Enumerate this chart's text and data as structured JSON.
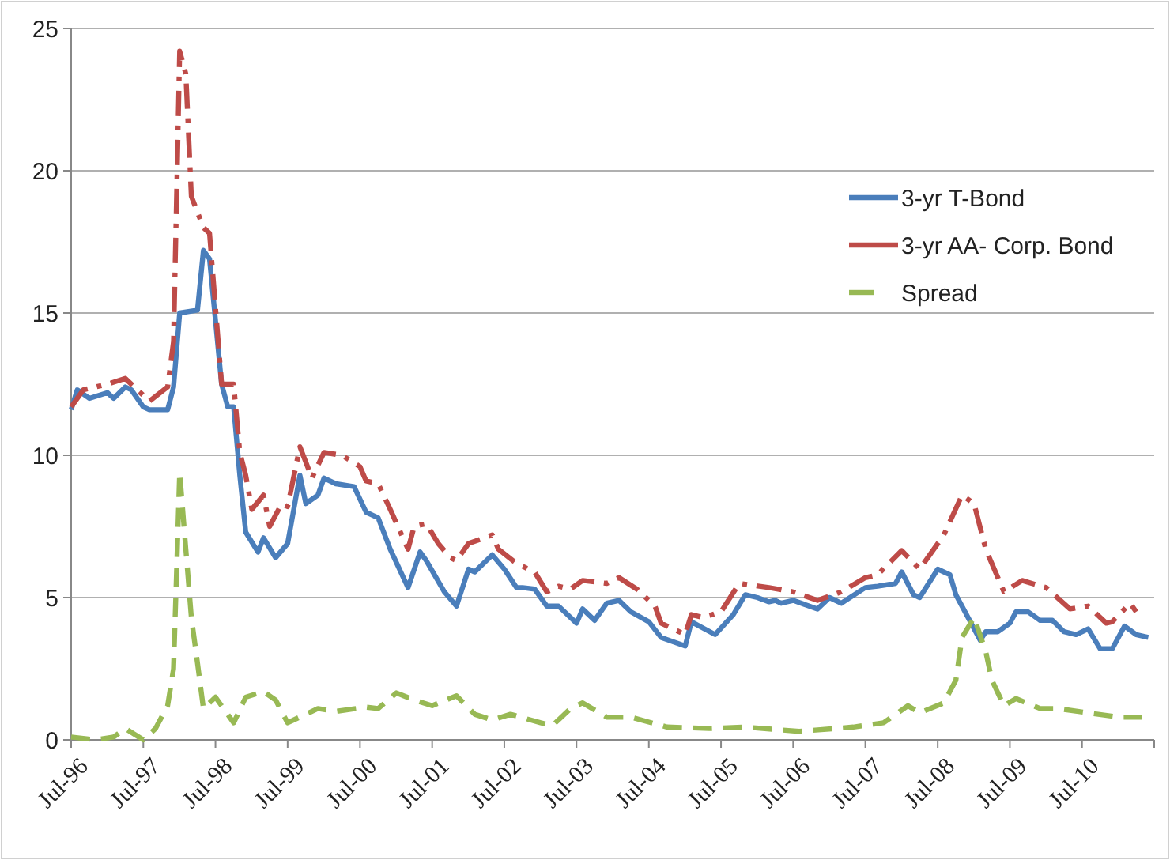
{
  "chart_data": {
    "type": "line",
    "xlim": [
      "1996-07",
      "2011-07"
    ],
    "ylim": [
      0,
      25
    ],
    "yticks": [
      0,
      5,
      10,
      15,
      20,
      25
    ],
    "xticks": [
      {
        "value": "1996-07",
        "label": "Jul-96"
      },
      {
        "value": "1997-07",
        "label": "Jul-97"
      },
      {
        "value": "1998-07",
        "label": "Jul-98"
      },
      {
        "value": "1999-07",
        "label": "Jul-99"
      },
      {
        "value": "2000-07",
        "label": "Jul-00"
      },
      {
        "value": "2001-07",
        "label": "Jul-01"
      },
      {
        "value": "2002-07",
        "label": "Jul-02"
      },
      {
        "value": "2003-07",
        "label": "Jul-03"
      },
      {
        "value": "2004-07",
        "label": "Jul-04"
      },
      {
        "value": "2005-07",
        "label": "Jul-05"
      },
      {
        "value": "2006-07",
        "label": "Jul-06"
      },
      {
        "value": "2007-07",
        "label": "Jul-07"
      },
      {
        "value": "2008-07",
        "label": "Jul-08"
      },
      {
        "value": "2009-07",
        "label": "Jul-09"
      },
      {
        "value": "2010-07",
        "label": "Jul-10"
      },
      {
        "value": "2011-07",
        "label": null
      }
    ],
    "grid": "y",
    "legend": "right",
    "marker": "none",
    "series": [
      {
        "name": "3-yr T-Bond",
        "color": "#4a7ebb",
        "line_style": "solid",
        "x": [
          "1996-07",
          "1996-08",
          "1996-10",
          "1997-01",
          "1997-02",
          "1997-04",
          "1997-05",
          "1997-07",
          "1997-08",
          "1997-11",
          "1997-12",
          "1998-01",
          "1998-04",
          "1998-05",
          "1998-06",
          "1998-08",
          "1998-09",
          "1998-10",
          "1998-11",
          "1998-12",
          "1999-02",
          "1999-03",
          "1999-05",
          "1999-07",
          "1999-09",
          "1999-10",
          "1999-12",
          "2000-01",
          "2000-03",
          "2000-06",
          "2000-08",
          "2000-09",
          "2000-10",
          "2000-12",
          "2001-03",
          "2001-05",
          "2001-06",
          "2001-09",
          "2001-11",
          "2002-01",
          "2002-02",
          "2002-05",
          "2002-07",
          "2002-09",
          "2002-10",
          "2002-12",
          "2003-02",
          "2003-04",
          "2003-07",
          "2003-08",
          "2003-10",
          "2003-12",
          "2004-02",
          "2004-04",
          "2004-07",
          "2004-09",
          "2005-01",
          "2005-02",
          "2005-06",
          "2005-09",
          "2005-11",
          "2006-01",
          "2006-03",
          "2006-04",
          "2006-05",
          "2006-07",
          "2006-11",
          "2007-01",
          "2007-03",
          "2007-07",
          "2007-09",
          "2007-12",
          "2008-01",
          "2008-03",
          "2008-04",
          "2008-07",
          "2008-09",
          "2008-10",
          "2009-02",
          "2009-03",
          "2009-05",
          "2009-07",
          "2009-08",
          "2009-10",
          "2009-12",
          "2010-02",
          "2010-04",
          "2010-06",
          "2010-08",
          "2010-10",
          "2010-12",
          "2011-02",
          "2011-04",
          "2011-06"
        ],
        "values": [
          11.6,
          12.3,
          12.0,
          12.2,
          12.0,
          12.4,
          12.3,
          11.7,
          11.6,
          11.6,
          12.4,
          15.0,
          15.1,
          17.2,
          16.9,
          12.5,
          11.7,
          11.7,
          9.3,
          7.3,
          6.6,
          7.1,
          6.4,
          6.9,
          9.3,
          8.3,
          8.6,
          9.2,
          9.0,
          8.9,
          8.0,
          7.9,
          7.8,
          6.7,
          5.35,
          6.6,
          6.3,
          5.2,
          4.7,
          6.0,
          5.9,
          6.5,
          6.0,
          5.35,
          5.35,
          5.3,
          4.7,
          4.7,
          4.1,
          4.6,
          4.2,
          4.8,
          4.9,
          4.5,
          4.15,
          3.6,
          3.3,
          4.15,
          3.7,
          4.4,
          5.1,
          5.0,
          4.85,
          4.9,
          4.8,
          4.9,
          4.6,
          5.0,
          4.8,
          5.35,
          5.4,
          5.5,
          5.9,
          5.1,
          5.0,
          6.0,
          5.8,
          5.1,
          3.5,
          3.8,
          3.8,
          4.1,
          4.5,
          4.5,
          4.2,
          4.2,
          3.8,
          3.7,
          3.9,
          3.2,
          3.2,
          4.0,
          3.7,
          3.6
        ]
      },
      {
        "name": "3-yr AA- Corp. Bond",
        "color": "#be4b48",
        "line_style": "dashdot",
        "x": [
          "1996-07",
          "1996-09",
          "1997-01",
          "1997-04",
          "1997-06",
          "1997-08",
          "1997-11",
          "1997-12",
          "1998-01",
          "1998-02",
          "1998-03",
          "1998-05",
          "1998-06",
          "1998-08",
          "1998-10",
          "1998-11",
          "1998-12",
          "1999-01",
          "1999-03",
          "1999-04",
          "1999-06",
          "1999-07",
          "1999-09",
          "1999-11",
          "2000-01",
          "2000-04",
          "2000-07",
          "2000-08",
          "2000-10",
          "2000-12",
          "2001-03",
          "2001-04",
          "2001-06",
          "2001-08",
          "2001-10",
          "2001-11",
          "2002-01",
          "2002-05",
          "2002-06",
          "2002-09",
          "2002-12",
          "2003-02",
          "2003-04",
          "2003-06",
          "2003-08",
          "2003-12",
          "2004-02",
          "2004-05",
          "2004-08",
          "2004-09",
          "2005-01",
          "2005-02",
          "2005-04",
          "2005-07",
          "2005-10",
          "2006-03",
          "2006-07",
          "2006-11",
          "2007-03",
          "2007-07",
          "2007-09",
          "2008-01",
          "2008-04",
          "2008-08",
          "2008-11",
          "2009-01",
          "2009-03",
          "2009-06",
          "2009-09",
          "2010-01",
          "2010-05",
          "2010-08",
          "2010-11",
          "2010-12",
          "2011-03",
          "2011-04"
        ],
        "values": [
          11.7,
          12.3,
          12.5,
          12.7,
          12.3,
          11.9,
          12.4,
          14.0,
          24.2,
          23.4,
          19.1,
          18.0,
          17.8,
          12.5,
          12.5,
          10.1,
          9.3,
          8.1,
          8.6,
          7.5,
          8.3,
          8.2,
          10.3,
          9.2,
          10.1,
          10.0,
          9.6,
          9.1,
          9.0,
          8.1,
          6.7,
          7.5,
          7.6,
          6.9,
          6.4,
          6.3,
          6.9,
          7.2,
          6.7,
          6.2,
          5.9,
          5.2,
          5.4,
          5.3,
          5.6,
          5.5,
          5.7,
          5.3,
          4.7,
          4.1,
          3.7,
          4.4,
          4.3,
          4.5,
          5.5,
          5.35,
          5.2,
          4.9,
          5.2,
          5.7,
          5.8,
          6.65,
          6.0,
          7.2,
          8.6,
          8.3,
          6.7,
          5.2,
          5.6,
          5.35,
          4.6,
          4.7,
          4.1,
          4.15,
          4.8,
          4.5
        ]
      },
      {
        "name": "Spread",
        "color": "#98b954",
        "line_style": "dashed",
        "x": [
          "1996-07",
          "1996-11",
          "1997-02",
          "1997-04",
          "1997-07",
          "1997-09",
          "1997-11",
          "1997-12",
          "1998-01",
          "1998-02",
          "1998-03",
          "1998-04",
          "1998-05",
          "1998-07",
          "1998-10",
          "1998-12",
          "1999-03",
          "1999-05",
          "1999-07",
          "1999-12",
          "2000-03",
          "2000-08",
          "2000-10",
          "2001-01",
          "2001-04",
          "2001-07",
          "2001-11",
          "2002-02",
          "2002-05",
          "2002-08",
          "2003-01",
          "2003-03",
          "2003-06",
          "2003-08",
          "2003-12",
          "2004-04",
          "2004-10",
          "2005-05",
          "2005-11",
          "2006-08",
          "2007-05",
          "2007-10",
          "2008-02",
          "2008-04",
          "2008-08",
          "2008-10",
          "2008-11",
          "2009-01",
          "2009-03",
          "2009-04",
          "2009-06",
          "2009-08",
          "2009-12",
          "2010-03",
          "2010-08",
          "2011-01",
          "2011-05"
        ],
        "values": [
          0.1,
          0,
          0.1,
          0.4,
          0,
          0.4,
          1.2,
          2.5,
          9.4,
          6.7,
          4.3,
          2.7,
          1.1,
          1.5,
          0.6,
          1.5,
          1.7,
          1.4,
          0.6,
          1.1,
          1.0,
          1.15,
          1.1,
          1.65,
          1.4,
          1.2,
          1.55,
          0.9,
          0.7,
          0.9,
          0.6,
          0.5,
          1.1,
          1.3,
          0.8,
          0.8,
          0.45,
          0.4,
          0.45,
          0.3,
          0.45,
          0.6,
          1.2,
          0.95,
          1.3,
          2.1,
          3.6,
          4.3,
          3.1,
          2.1,
          1.2,
          1.45,
          1.1,
          1.1,
          0.95,
          0.8,
          0.8
        ]
      }
    ]
  }
}
